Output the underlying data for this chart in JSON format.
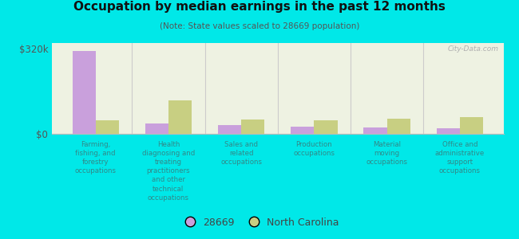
{
  "title": "Occupation by median earnings in the past 12 months",
  "subtitle": "(Note: State values scaled to 28669 population)",
  "background_color": "#00e8e8",
  "plot_bg_color": "#eef2e2",
  "ylabel_0": "$0",
  "ylabel_320": "$320k",
  "categories": [
    "Farming,\nfishing, and\nforestry\noccupations",
    "Health\ndiagnosing and\ntreating\npractitioners\nand other\ntechnical\noccupations",
    "Sales and\nrelated\noccupations",
    "Production\noccupations",
    "Material\nmoving\noccupations",
    "Office and\nadministrative\nsupport\noccupations"
  ],
  "values_28669": [
    310000,
    38000,
    32000,
    28000,
    25000,
    22000
  ],
  "values_nc": [
    52000,
    125000,
    55000,
    52000,
    58000,
    62000
  ],
  "color_28669": "#c9a0dc",
  "color_nc": "#c8cf82",
  "ylim": [
    0,
    340000
  ],
  "legend_28669": "28669",
  "legend_nc": "North Carolina",
  "watermark": "City-Data.com",
  "bar_width": 0.32,
  "label_color": "#338888",
  "title_color": "#111111",
  "subtitle_color": "#555555"
}
